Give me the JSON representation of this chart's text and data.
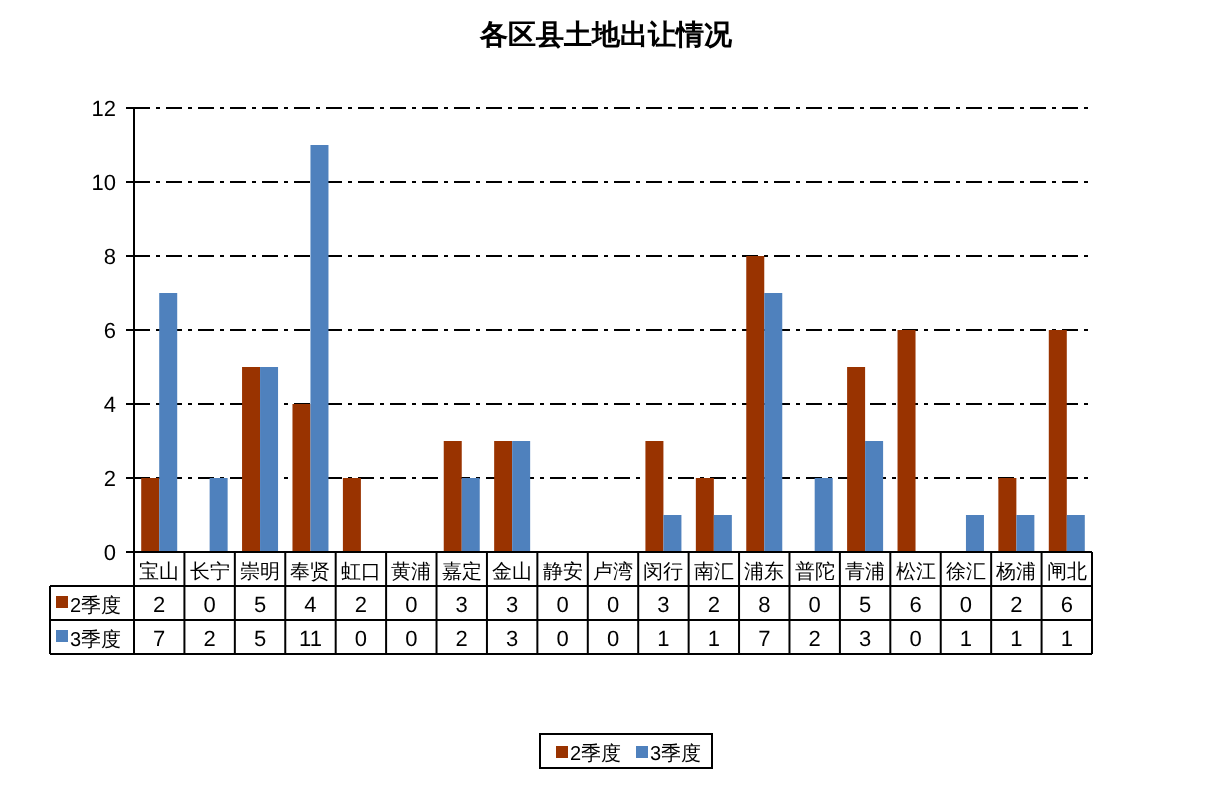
{
  "chart_data": {
    "type": "bar",
    "title": "各区县土地出让情况",
    "categories": [
      "宝山",
      "长宁",
      "崇明",
      "奉贤",
      "虹口",
      "黄浦",
      "嘉定",
      "金山",
      "静安",
      "卢湾",
      "闵行",
      "南汇",
      "浦东",
      "普陀",
      "青浦",
      "松江",
      "徐汇",
      "杨浦",
      "闸北"
    ],
    "series": [
      {
        "name": "2季度",
        "color": "#993300",
        "values": [
          2,
          0,
          5,
          4,
          2,
          0,
          3,
          3,
          0,
          0,
          3,
          2,
          8,
          0,
          5,
          6,
          0,
          2,
          6
        ]
      },
      {
        "name": "3季度",
        "color": "#4f81bd",
        "values": [
          7,
          2,
          5,
          11,
          0,
          0,
          2,
          3,
          0,
          0,
          1,
          1,
          7,
          2,
          3,
          0,
          1,
          1,
          1
        ]
      }
    ],
    "ylim": [
      0,
      12
    ],
    "yticks": [
      0,
      2,
      4,
      6,
      8,
      10,
      12
    ],
    "grid": "y",
    "legend": "bottom",
    "data_labels": true
  }
}
